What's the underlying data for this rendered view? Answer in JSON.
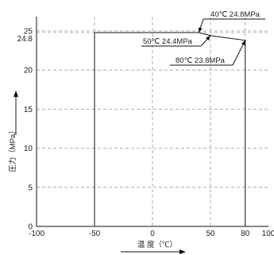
{
  "chart_data": {
    "type": "line",
    "xlabel": "温  度（℃）",
    "ylabel": "圧力（MPa）",
    "xlim": [
      -100,
      100
    ],
    "ylim": [
      0,
      27
    ],
    "x_ticks": [
      "-100",
      "-50",
      "0",
      "50",
      "80",
      "100"
    ],
    "y_ticks": [
      "0",
      "5",
      "10",
      "15",
      "20",
      "25"
    ],
    "extra_y_label": "24.8",
    "grid": true,
    "series": [
      {
        "points": [
          {
            "x": -50,
            "y": 0
          },
          {
            "x": -50,
            "y": 24.8
          },
          {
            "x": 40,
            "y": 24.8
          },
          {
            "x": 50,
            "y": 24.4
          },
          {
            "x": 80,
            "y": 23.8
          },
          {
            "x": 80,
            "y": 0
          }
        ]
      }
    ],
    "annotations": [
      {
        "text": "40℃ 24.8MPa",
        "x": 40,
        "y": 24.8
      },
      {
        "text": "50℃ 24.4MPa",
        "x": 50,
        "y": 24.4
      },
      {
        "text": "80℃ 23.8MPa",
        "x": 80,
        "y": 23.8
      }
    ]
  }
}
